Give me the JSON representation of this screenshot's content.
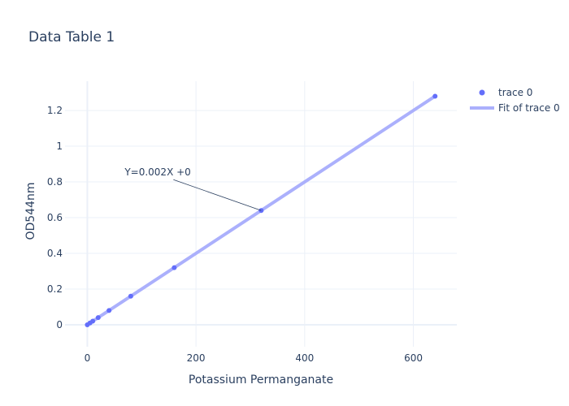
{
  "chart_data": {
    "type": "scatter",
    "title": "Data Table 1",
    "xlabel": "Potassium Permanganate",
    "ylabel": "OD544nm",
    "xlim": [
      -41,
      680
    ],
    "ylim": [
      -0.123,
      1.364
    ],
    "xticks": [
      0,
      200,
      400,
      600
    ],
    "yticks": [
      0,
      0.2,
      0.4,
      0.6,
      0.8,
      1,
      1.2
    ],
    "ytick_labels": [
      "0",
      "0.2",
      "0.4",
      "0.6",
      "0.8",
      "1",
      "1.2"
    ],
    "grid": true,
    "legend_position": "top-right",
    "series": [
      {
        "name": "trace 0",
        "mode": "markers",
        "color": "#636efa",
        "x": [
          0,
          5,
          10,
          20,
          40,
          80,
          160,
          320,
          640
        ],
        "y": [
          0,
          0.01,
          0.02,
          0.04,
          0.08,
          0.16,
          0.32,
          0.64,
          1.28
        ]
      },
      {
        "name": "Fit of trace 0",
        "mode": "lines",
        "color": "#abb0fc",
        "x": [
          0,
          640
        ],
        "y": [
          0,
          1.28
        ]
      }
    ],
    "annotation": {
      "text": "Y=0.002X +0",
      "x": 320,
      "y": 0.64
    }
  }
}
